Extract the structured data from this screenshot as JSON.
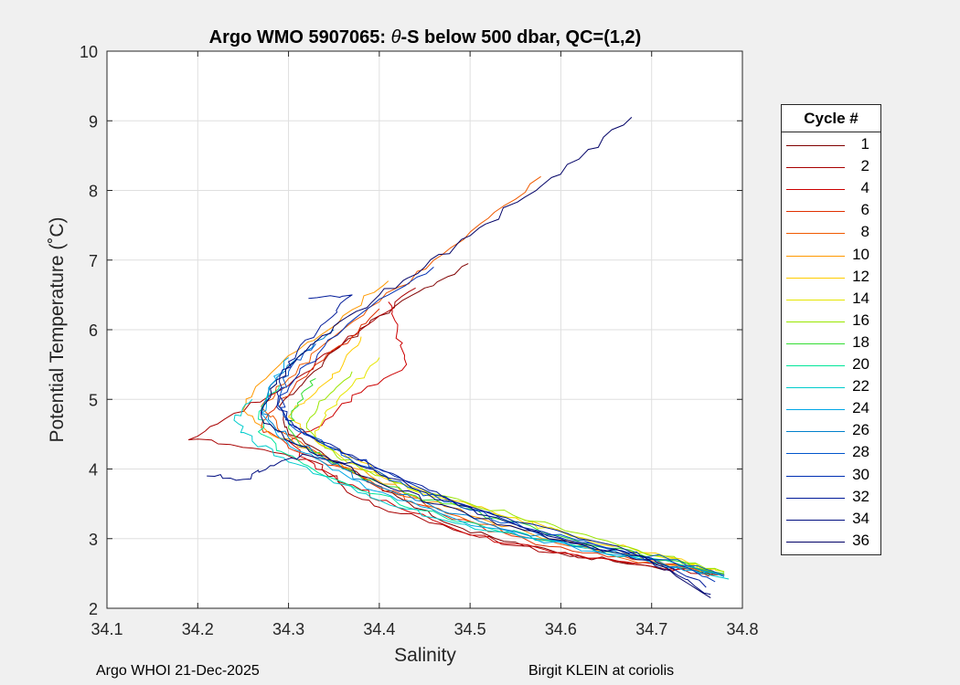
{
  "chart_data": {
    "type": "line",
    "title": "Argo WMO 5907065: θ-S below 500 dbar,  QC=(1,2)",
    "title_parts": {
      "prefix": "Argo WMO 5907065: ",
      "symbol": "θ",
      "suffix": "-S below 500 dbar,  QC=(1,2)"
    },
    "xlabel": "Salinity",
    "ylabel": "Potential Temperature (˚C)",
    "xlim": [
      34.1,
      34.8
    ],
    "ylim": [
      2,
      10
    ],
    "xticks": [
      "34.1",
      "34.2",
      "34.3",
      "34.4",
      "34.5",
      "34.6",
      "34.7",
      "34.8"
    ],
    "yticks": [
      "2",
      "3",
      "4",
      "5",
      "6",
      "7",
      "8",
      "9",
      "10"
    ],
    "grid": true,
    "legend_title": "Cycle #",
    "legend_position": "outside-right",
    "series": [
      {
        "name": "1",
        "color": "#800000",
        "points": [
          [
            34.498,
            6.95
          ],
          [
            34.45,
            6.6
          ],
          [
            34.4,
            6.2
          ],
          [
            34.36,
            5.8
          ],
          [
            34.32,
            5.3
          ],
          [
            34.29,
            4.9
          ],
          [
            34.3,
            4.5
          ],
          [
            34.34,
            4.2
          ],
          [
            34.38,
            3.9
          ],
          [
            34.42,
            3.6
          ],
          [
            34.48,
            3.2
          ],
          [
            34.55,
            2.95
          ],
          [
            34.62,
            2.75
          ],
          [
            34.7,
            2.6
          ],
          [
            34.78,
            2.48
          ]
        ]
      },
      {
        "name": "2",
        "color": "#a80000",
        "points": [
          [
            34.44,
            6.6
          ],
          [
            34.4,
            6.2
          ],
          [
            34.35,
            5.7
          ],
          [
            34.3,
            5.2
          ],
          [
            34.24,
            4.8
          ],
          [
            34.19,
            4.42
          ],
          [
            34.26,
            4.3
          ],
          [
            34.33,
            4.1
          ],
          [
            34.36,
            3.75
          ],
          [
            34.4,
            3.45
          ],
          [
            34.47,
            3.2
          ],
          [
            34.55,
            2.9
          ],
          [
            34.63,
            2.72
          ],
          [
            34.71,
            2.58
          ],
          [
            34.78,
            2.47
          ]
        ]
      },
      {
        "name": "4",
        "color": "#cc0000",
        "points": [
          [
            34.41,
            6.4
          ],
          [
            34.42,
            6.0
          ],
          [
            34.43,
            5.5
          ],
          [
            34.38,
            5.1
          ],
          [
            34.34,
            4.7
          ],
          [
            34.3,
            4.4
          ],
          [
            34.33,
            4.0
          ],
          [
            34.38,
            3.7
          ],
          [
            34.42,
            3.45
          ],
          [
            34.5,
            3.05
          ],
          [
            34.58,
            2.85
          ],
          [
            34.66,
            2.68
          ],
          [
            34.73,
            2.56
          ],
          [
            34.78,
            2.47
          ]
        ]
      },
      {
        "name": "6",
        "color": "#e03000",
        "points": [
          [
            34.4,
            6.3
          ],
          [
            34.37,
            5.9
          ],
          [
            34.33,
            5.5
          ],
          [
            34.29,
            5.0
          ],
          [
            34.27,
            4.6
          ],
          [
            34.3,
            4.3
          ],
          [
            34.35,
            4.05
          ],
          [
            34.39,
            3.8
          ],
          [
            34.44,
            3.5
          ],
          [
            34.52,
            3.1
          ],
          [
            34.6,
            2.88
          ],
          [
            34.68,
            2.7
          ],
          [
            34.77,
            2.5
          ]
        ]
      },
      {
        "name": "8",
        "color": "#f05a00",
        "points": [
          [
            34.578,
            8.2
          ],
          [
            34.52,
            7.6
          ],
          [
            34.46,
            7.0
          ],
          [
            34.4,
            6.4
          ],
          [
            34.34,
            5.8
          ],
          [
            34.3,
            5.3
          ],
          [
            34.27,
            4.9
          ],
          [
            34.29,
            4.55
          ],
          [
            34.33,
            4.25
          ],
          [
            34.37,
            3.95
          ],
          [
            34.43,
            3.6
          ],
          [
            34.5,
            3.25
          ],
          [
            34.57,
            3.0
          ],
          [
            34.65,
            2.78
          ],
          [
            34.72,
            2.6
          ],
          [
            34.78,
            2.48
          ]
        ]
      },
      {
        "name": "10",
        "color": "#ff9900",
        "points": [
          [
            34.41,
            6.7
          ],
          [
            34.36,
            6.2
          ],
          [
            34.31,
            5.7
          ],
          [
            34.27,
            5.25
          ],
          [
            34.25,
            4.85
          ],
          [
            34.28,
            4.5
          ],
          [
            34.34,
            4.2
          ],
          [
            34.39,
            3.9
          ],
          [
            34.44,
            3.6
          ],
          [
            34.51,
            3.3
          ],
          [
            34.58,
            3.0
          ],
          [
            34.66,
            2.8
          ],
          [
            34.73,
            2.62
          ],
          [
            34.78,
            2.5
          ]
        ]
      },
      {
        "name": "12",
        "color": "#ffcc00",
        "points": [
          [
            34.38,
            5.9
          ],
          [
            34.36,
            5.5
          ],
          [
            34.33,
            5.1
          ],
          [
            34.3,
            4.75
          ],
          [
            34.33,
            4.4
          ],
          [
            34.38,
            4.1
          ],
          [
            34.42,
            3.8
          ],
          [
            34.48,
            3.55
          ],
          [
            34.55,
            3.3
          ],
          [
            34.62,
            3.02
          ],
          [
            34.69,
            2.8
          ],
          [
            34.77,
            2.56
          ]
        ]
      },
      {
        "name": "14",
        "color": "#e6e600",
        "points": [
          [
            34.4,
            5.6
          ],
          [
            34.37,
            5.2
          ],
          [
            34.34,
            4.8
          ],
          [
            34.33,
            4.45
          ],
          [
            34.36,
            4.15
          ],
          [
            34.41,
            3.85
          ],
          [
            34.46,
            3.6
          ],
          [
            34.53,
            3.35
          ],
          [
            34.6,
            3.1
          ],
          [
            34.67,
            2.85
          ],
          [
            34.74,
            2.64
          ],
          [
            34.78,
            2.53
          ]
        ]
      },
      {
        "name": "16",
        "color": "#99e600",
        "points": [
          [
            34.37,
            5.4
          ],
          [
            34.34,
            5.0
          ],
          [
            34.32,
            4.65
          ],
          [
            34.34,
            4.3
          ],
          [
            34.38,
            4.0
          ],
          [
            34.43,
            3.75
          ],
          [
            34.5,
            3.5
          ],
          [
            34.57,
            3.25
          ],
          [
            34.64,
            3.0
          ],
          [
            34.71,
            2.75
          ],
          [
            34.78,
            2.52
          ]
        ]
      },
      {
        "name": "18",
        "color": "#33dd33",
        "points": [
          [
            34.33,
            5.3
          ],
          [
            34.31,
            4.95
          ],
          [
            34.3,
            4.6
          ],
          [
            34.32,
            4.3
          ],
          [
            34.36,
            4.0
          ],
          [
            34.41,
            3.75
          ],
          [
            34.47,
            3.5
          ],
          [
            34.54,
            3.25
          ],
          [
            34.61,
            3.0
          ],
          [
            34.69,
            2.76
          ],
          [
            34.78,
            2.5
          ]
        ]
      },
      {
        "name": "20",
        "color": "#00e699",
        "points": [
          [
            34.29,
            5.2
          ],
          [
            34.27,
            4.85
          ],
          [
            34.27,
            4.5
          ],
          [
            34.3,
            4.2
          ],
          [
            34.34,
            3.9
          ],
          [
            34.39,
            3.65
          ],
          [
            34.45,
            3.4
          ],
          [
            34.52,
            3.15
          ],
          [
            34.6,
            2.95
          ],
          [
            34.68,
            2.75
          ],
          [
            34.78,
            2.48
          ]
        ]
      },
      {
        "name": "22",
        "color": "#00cccc",
        "points": [
          [
            34.26,
            5.0
          ],
          [
            34.24,
            4.7
          ],
          [
            34.26,
            4.4
          ],
          [
            34.3,
            4.1
          ],
          [
            34.35,
            3.8
          ],
          [
            34.4,
            3.55
          ],
          [
            34.46,
            3.3
          ],
          [
            34.53,
            3.1
          ],
          [
            34.61,
            2.9
          ],
          [
            34.69,
            2.7
          ],
          [
            34.785,
            2.42
          ]
        ]
      },
      {
        "name": "24",
        "color": "#00a6e6",
        "points": [
          [
            34.3,
            5.6
          ],
          [
            34.28,
            5.2
          ],
          [
            34.27,
            4.8
          ],
          [
            34.29,
            4.45
          ],
          [
            34.33,
            4.15
          ],
          [
            34.37,
            3.85
          ],
          [
            34.42,
            3.55
          ],
          [
            34.49,
            3.25
          ],
          [
            34.57,
            3.0
          ],
          [
            34.65,
            2.78
          ],
          [
            34.73,
            2.58
          ],
          [
            34.78,
            2.45
          ]
        ]
      },
      {
        "name": "26",
        "color": "#0080cc",
        "points": [
          [
            34.35,
            6.0
          ],
          [
            34.31,
            5.6
          ],
          [
            34.28,
            5.2
          ],
          [
            34.27,
            4.8
          ],
          [
            34.3,
            4.45
          ],
          [
            34.34,
            4.15
          ],
          [
            34.38,
            3.85
          ],
          [
            34.44,
            3.55
          ],
          [
            34.51,
            3.25
          ],
          [
            34.59,
            2.98
          ],
          [
            34.67,
            2.76
          ],
          [
            34.77,
            2.5
          ]
        ]
      },
      {
        "name": "28",
        "color": "#0055cc",
        "points": [
          [
            34.33,
            5.8
          ],
          [
            34.3,
            5.4
          ],
          [
            34.29,
            5.0
          ],
          [
            34.3,
            4.65
          ],
          [
            34.34,
            4.35
          ],
          [
            34.38,
            4.05
          ],
          [
            34.43,
            3.75
          ],
          [
            34.49,
            3.45
          ],
          [
            34.56,
            3.15
          ],
          [
            34.64,
            2.9
          ],
          [
            34.72,
            2.7
          ],
          [
            34.78,
            2.47
          ]
        ]
      },
      {
        "name": "30",
        "color": "#0030b3",
        "points": [
          [
            34.46,
            6.9
          ],
          [
            34.41,
            6.5
          ],
          [
            34.36,
            6.0
          ],
          [
            34.32,
            5.5
          ],
          [
            34.29,
            5.05
          ],
          [
            34.3,
            4.65
          ],
          [
            34.35,
            4.3
          ],
          [
            34.4,
            4.0
          ],
          [
            34.45,
            3.7
          ],
          [
            34.51,
            3.4
          ],
          [
            34.58,
            3.1
          ],
          [
            34.66,
            2.85
          ],
          [
            34.73,
            2.62
          ],
          [
            34.77,
            2.38
          ]
        ]
      },
      {
        "name": "32",
        "color": "#001a99",
        "points": [
          [
            34.322,
            6.45
          ],
          [
            34.37,
            6.5
          ],
          [
            34.34,
            6.1
          ],
          [
            34.31,
            5.7
          ],
          [
            34.29,
            5.25
          ],
          [
            34.29,
            4.85
          ],
          [
            34.32,
            4.5
          ],
          [
            34.37,
            4.2
          ],
          [
            34.42,
            3.9
          ],
          [
            34.47,
            3.6
          ],
          [
            34.54,
            3.3
          ],
          [
            34.62,
            3.0
          ],
          [
            34.7,
            2.72
          ],
          [
            34.76,
            2.3
          ]
        ]
      },
      {
        "name": "34",
        "color": "#000d80",
        "points": [
          [
            34.21,
            3.9
          ],
          [
            34.25,
            3.85
          ],
          [
            34.28,
            4.05
          ],
          [
            34.32,
            4.2
          ],
          [
            34.37,
            4.1
          ],
          [
            34.42,
            3.85
          ],
          [
            34.47,
            3.55
          ],
          [
            34.53,
            3.3
          ],
          [
            34.6,
            3.0
          ],
          [
            34.67,
            2.78
          ],
          [
            34.72,
            2.55
          ],
          [
            34.765,
            2.2
          ]
        ]
      },
      {
        "name": "36",
        "color": "#000066",
        "points": [
          [
            34.678,
            9.05
          ],
          [
            34.62,
            8.45
          ],
          [
            34.56,
            7.9
          ],
          [
            34.5,
            7.35
          ],
          [
            34.45,
            6.9
          ],
          [
            34.4,
            6.5
          ],
          [
            34.35,
            6.05
          ],
          [
            34.31,
            5.6
          ],
          [
            34.28,
            5.15
          ],
          [
            34.27,
            4.75
          ],
          [
            34.3,
            4.4
          ],
          [
            34.35,
            4.1
          ],
          [
            34.4,
            3.8
          ],
          [
            34.46,
            3.5
          ],
          [
            34.53,
            3.2
          ],
          [
            34.61,
            2.95
          ],
          [
            34.69,
            2.75
          ],
          [
            34.765,
            2.15
          ]
        ]
      }
    ]
  },
  "footer": {
    "left": "Argo WHOI 21-Dec-2025",
    "right": "Birgit KLEIN at coriolis"
  }
}
